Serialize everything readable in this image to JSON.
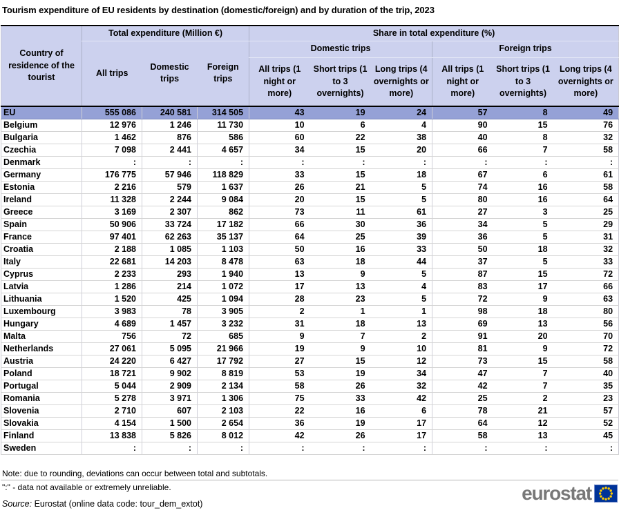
{
  "title": "Tourism expenditure of EU residents by destination (domestic/foreign) and by duration of the trip, 2023",
  "chart_data": {
    "type": "table",
    "title": "Tourism expenditure of EU residents by destination (domestic/foreign) and by duration of the trip, 2023",
    "corner_header": "Country of residence of the tourist",
    "col_groups": [
      {
        "label": "Total expenditure (Million €)",
        "span": 3
      },
      {
        "label": "Share in total expenditure (%)",
        "span": 6
      }
    ],
    "share_subgroups": [
      {
        "label": "Domestic trips",
        "span": 3
      },
      {
        "label": "Foreign trips",
        "span": 3
      }
    ],
    "expenditure_columns": [
      "All trips",
      "Domestic trips",
      "Foreign trips"
    ],
    "share_columns": [
      "All trips (1 night or more)",
      "Short trips (1 to 3 overnights)",
      "Long trips (4 overnights or more)"
    ],
    "missing_symbol": ":",
    "rows": [
      {
        "country": "EU",
        "highlight": true,
        "values": [
          "555 086",
          "240 581",
          "314 505",
          "43",
          "19",
          "24",
          "57",
          "8",
          "49"
        ]
      },
      {
        "country": "Belgium",
        "highlight": false,
        "values": [
          "12 976",
          "1 246",
          "11 730",
          "10",
          "6",
          "4",
          "90",
          "15",
          "76"
        ]
      },
      {
        "country": "Bulgaria",
        "highlight": false,
        "values": [
          "1 462",
          "876",
          "586",
          "60",
          "22",
          "38",
          "40",
          "8",
          "32"
        ]
      },
      {
        "country": "Czechia",
        "highlight": false,
        "values": [
          "7 098",
          "2 441",
          "4 657",
          "34",
          "15",
          "20",
          "66",
          "7",
          "58"
        ]
      },
      {
        "country": "Denmark",
        "highlight": false,
        "values": [
          ":",
          ":",
          ":",
          ":",
          ":",
          ":",
          ":",
          ":",
          ":"
        ]
      },
      {
        "country": "Germany",
        "highlight": false,
        "values": [
          "176 775",
          "57 946",
          "118 829",
          "33",
          "15",
          "18",
          "67",
          "6",
          "61"
        ]
      },
      {
        "country": "Estonia",
        "highlight": false,
        "values": [
          "2 216",
          "579",
          "1 637",
          "26",
          "21",
          "5",
          "74",
          "16",
          "58"
        ]
      },
      {
        "country": "Ireland",
        "highlight": false,
        "values": [
          "11 328",
          "2 244",
          "9 084",
          "20",
          "15",
          "5",
          "80",
          "16",
          "64"
        ]
      },
      {
        "country": "Greece",
        "highlight": false,
        "values": [
          "3 169",
          "2 307",
          "862",
          "73",
          "11",
          "61",
          "27",
          "3",
          "25"
        ]
      },
      {
        "country": "Spain",
        "highlight": false,
        "values": [
          "50 906",
          "33 724",
          "17 182",
          "66",
          "30",
          "36",
          "34",
          "5",
          "29"
        ]
      },
      {
        "country": "France",
        "highlight": false,
        "values": [
          "97 401",
          "62 263",
          "35 137",
          "64",
          "25",
          "39",
          "36",
          "5",
          "31"
        ]
      },
      {
        "country": "Croatia",
        "highlight": false,
        "values": [
          "2 188",
          "1 085",
          "1 103",
          "50",
          "16",
          "33",
          "50",
          "18",
          "32"
        ]
      },
      {
        "country": "Italy",
        "highlight": false,
        "values": [
          "22 681",
          "14 203",
          "8 478",
          "63",
          "18",
          "44",
          "37",
          "5",
          "33"
        ]
      },
      {
        "country": "Cyprus",
        "highlight": false,
        "values": [
          "2 233",
          "293",
          "1 940",
          "13",
          "9",
          "5",
          "87",
          "15",
          "72"
        ]
      },
      {
        "country": "Latvia",
        "highlight": false,
        "values": [
          "1 286",
          "214",
          "1 072",
          "17",
          "13",
          "4",
          "83",
          "17",
          "66"
        ]
      },
      {
        "country": "Lithuania",
        "highlight": false,
        "values": [
          "1 520",
          "425",
          "1 094",
          "28",
          "23",
          "5",
          "72",
          "9",
          "63"
        ]
      },
      {
        "country": "Luxembourg",
        "highlight": false,
        "values": [
          "3 983",
          "78",
          "3 905",
          "2",
          "1",
          "1",
          "98",
          "18",
          "80"
        ]
      },
      {
        "country": "Hungary",
        "highlight": false,
        "values": [
          "4 689",
          "1 457",
          "3 232",
          "31",
          "18",
          "13",
          "69",
          "13",
          "56"
        ]
      },
      {
        "country": "Malta",
        "highlight": false,
        "values": [
          "756",
          "72",
          "685",
          "9",
          "7",
          "2",
          "91",
          "20",
          "70"
        ]
      },
      {
        "country": "Netherlands",
        "highlight": false,
        "values": [
          "27 061",
          "5 095",
          "21 966",
          "19",
          "9",
          "10",
          "81",
          "9",
          "72"
        ]
      },
      {
        "country": "Austria",
        "highlight": false,
        "values": [
          "24 220",
          "6 427",
          "17 792",
          "27",
          "15",
          "12",
          "73",
          "15",
          "58"
        ]
      },
      {
        "country": "Poland",
        "highlight": false,
        "values": [
          "18 721",
          "9 902",
          "8 819",
          "53",
          "19",
          "34",
          "47",
          "7",
          "40"
        ]
      },
      {
        "country": "Portugal",
        "highlight": false,
        "values": [
          "5 044",
          "2 909",
          "2 134",
          "58",
          "26",
          "32",
          "42",
          "7",
          "35"
        ]
      },
      {
        "country": "Romania",
        "highlight": false,
        "values": [
          "5 278",
          "3 971",
          "1 306",
          "75",
          "33",
          "42",
          "25",
          "2",
          "23"
        ]
      },
      {
        "country": "Slovenia",
        "highlight": false,
        "values": [
          "2 710",
          "607",
          "2 103",
          "22",
          "16",
          "6",
          "78",
          "21",
          "57"
        ]
      },
      {
        "country": "Slovakia",
        "highlight": false,
        "values": [
          "4 154",
          "1 500",
          "2 654",
          "36",
          "19",
          "17",
          "64",
          "12",
          "52"
        ]
      },
      {
        "country": "Finland",
        "highlight": false,
        "values": [
          "13 838",
          "5 826",
          "8 012",
          "42",
          "26",
          "17",
          "58",
          "13",
          "45"
        ]
      },
      {
        "country": "Sweden",
        "highlight": false,
        "values": [
          ":",
          ":",
          ":",
          ":",
          ":",
          ":",
          ":",
          ":",
          ":"
        ]
      }
    ]
  },
  "notes": [
    "Note: due to rounding, deviations can occur between total and subtotals.",
    "\":\" - data not available or extremely unreliable."
  ],
  "source": {
    "prefix": "Source:",
    "text": "Eurostat (online data code: tour_dem_extot)"
  },
  "logo": {
    "text": "eurostat"
  },
  "colors": {
    "header_bg": "#ccd1ee",
    "eu_row_bg": "#95a1d6",
    "flag_blue": "#003399",
    "star_yellow": "#ffcc00",
    "logo_gray": "#787878"
  }
}
